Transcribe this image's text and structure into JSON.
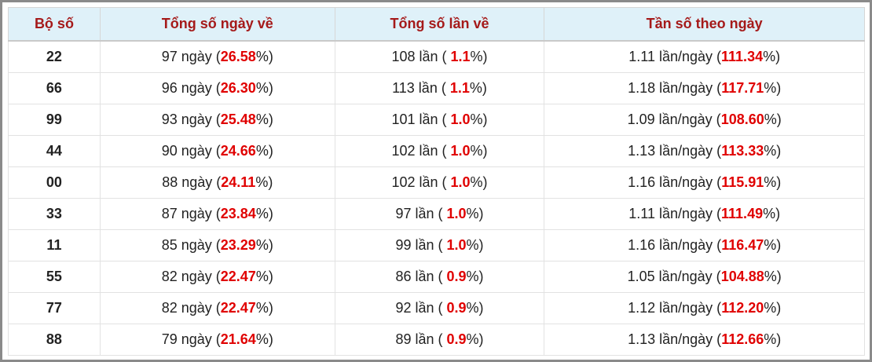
{
  "table": {
    "header": [
      "Bộ số",
      "Tổng số ngày về",
      "Tổng số lần về",
      "Tần số theo ngày"
    ],
    "rows": [
      {
        "number": "22",
        "cells": [
          [
            "97 ngày (",
            "26.58",
            "%)"
          ],
          [
            "108 lần ( ",
            "1.1",
            "%)"
          ],
          [
            "1.11 lần/ngày (",
            "111.34",
            "%)"
          ]
        ]
      },
      {
        "number": "66",
        "cells": [
          [
            "96 ngày (",
            "26.30",
            "%)"
          ],
          [
            "113 lần ( ",
            "1.1",
            "%)"
          ],
          [
            "1.18 lần/ngày (",
            "117.71",
            "%)"
          ]
        ]
      },
      {
        "number": "99",
        "cells": [
          [
            "93 ngày (",
            "25.48",
            "%)"
          ],
          [
            "101 lần ( ",
            "1.0",
            "%)"
          ],
          [
            "1.09 lần/ngày (",
            "108.60",
            "%)"
          ]
        ]
      },
      {
        "number": "44",
        "cells": [
          [
            "90 ngày (",
            "24.66",
            "%)"
          ],
          [
            "102 lần ( ",
            "1.0",
            "%)"
          ],
          [
            "1.13 lần/ngày (",
            "113.33",
            "%)"
          ]
        ]
      },
      {
        "number": "00",
        "cells": [
          [
            "88 ngày (",
            "24.11",
            "%)"
          ],
          [
            "102 lần ( ",
            "1.0",
            "%)"
          ],
          [
            "1.16 lần/ngày (",
            "115.91",
            "%)"
          ]
        ]
      },
      {
        "number": "33",
        "cells": [
          [
            "87 ngày (",
            "23.84",
            "%)"
          ],
          [
            "97 lần ( ",
            "1.0",
            "%)"
          ],
          [
            "1.11 lần/ngày (",
            "111.49",
            "%)"
          ]
        ]
      },
      {
        "number": "11",
        "cells": [
          [
            "85 ngày (",
            "23.29",
            "%)"
          ],
          [
            "99 lần ( ",
            "1.0",
            "%)"
          ],
          [
            "1.16 lần/ngày (",
            "116.47",
            "%)"
          ]
        ]
      },
      {
        "number": "55",
        "cells": [
          [
            "82 ngày (",
            "22.47",
            "%)"
          ],
          [
            "86 lần ( ",
            "0.9",
            "%)"
          ],
          [
            "1.05 lần/ngày (",
            "104.88",
            "%)"
          ]
        ]
      },
      {
        "number": "77",
        "cells": [
          [
            "82 ngày (",
            "22.47",
            "%)"
          ],
          [
            "92 lần ( ",
            "0.9",
            "%)"
          ],
          [
            "1.12 lần/ngày (",
            "112.20",
            "%)"
          ]
        ]
      },
      {
        "number": "88",
        "cells": [
          [
            "79 ngày (",
            "21.64",
            "%)"
          ],
          [
            "89 lần ( ",
            "0.9",
            "%)"
          ],
          [
            "1.13 lần/ngày (",
            "112.66",
            "%)"
          ]
        ]
      }
    ]
  }
}
